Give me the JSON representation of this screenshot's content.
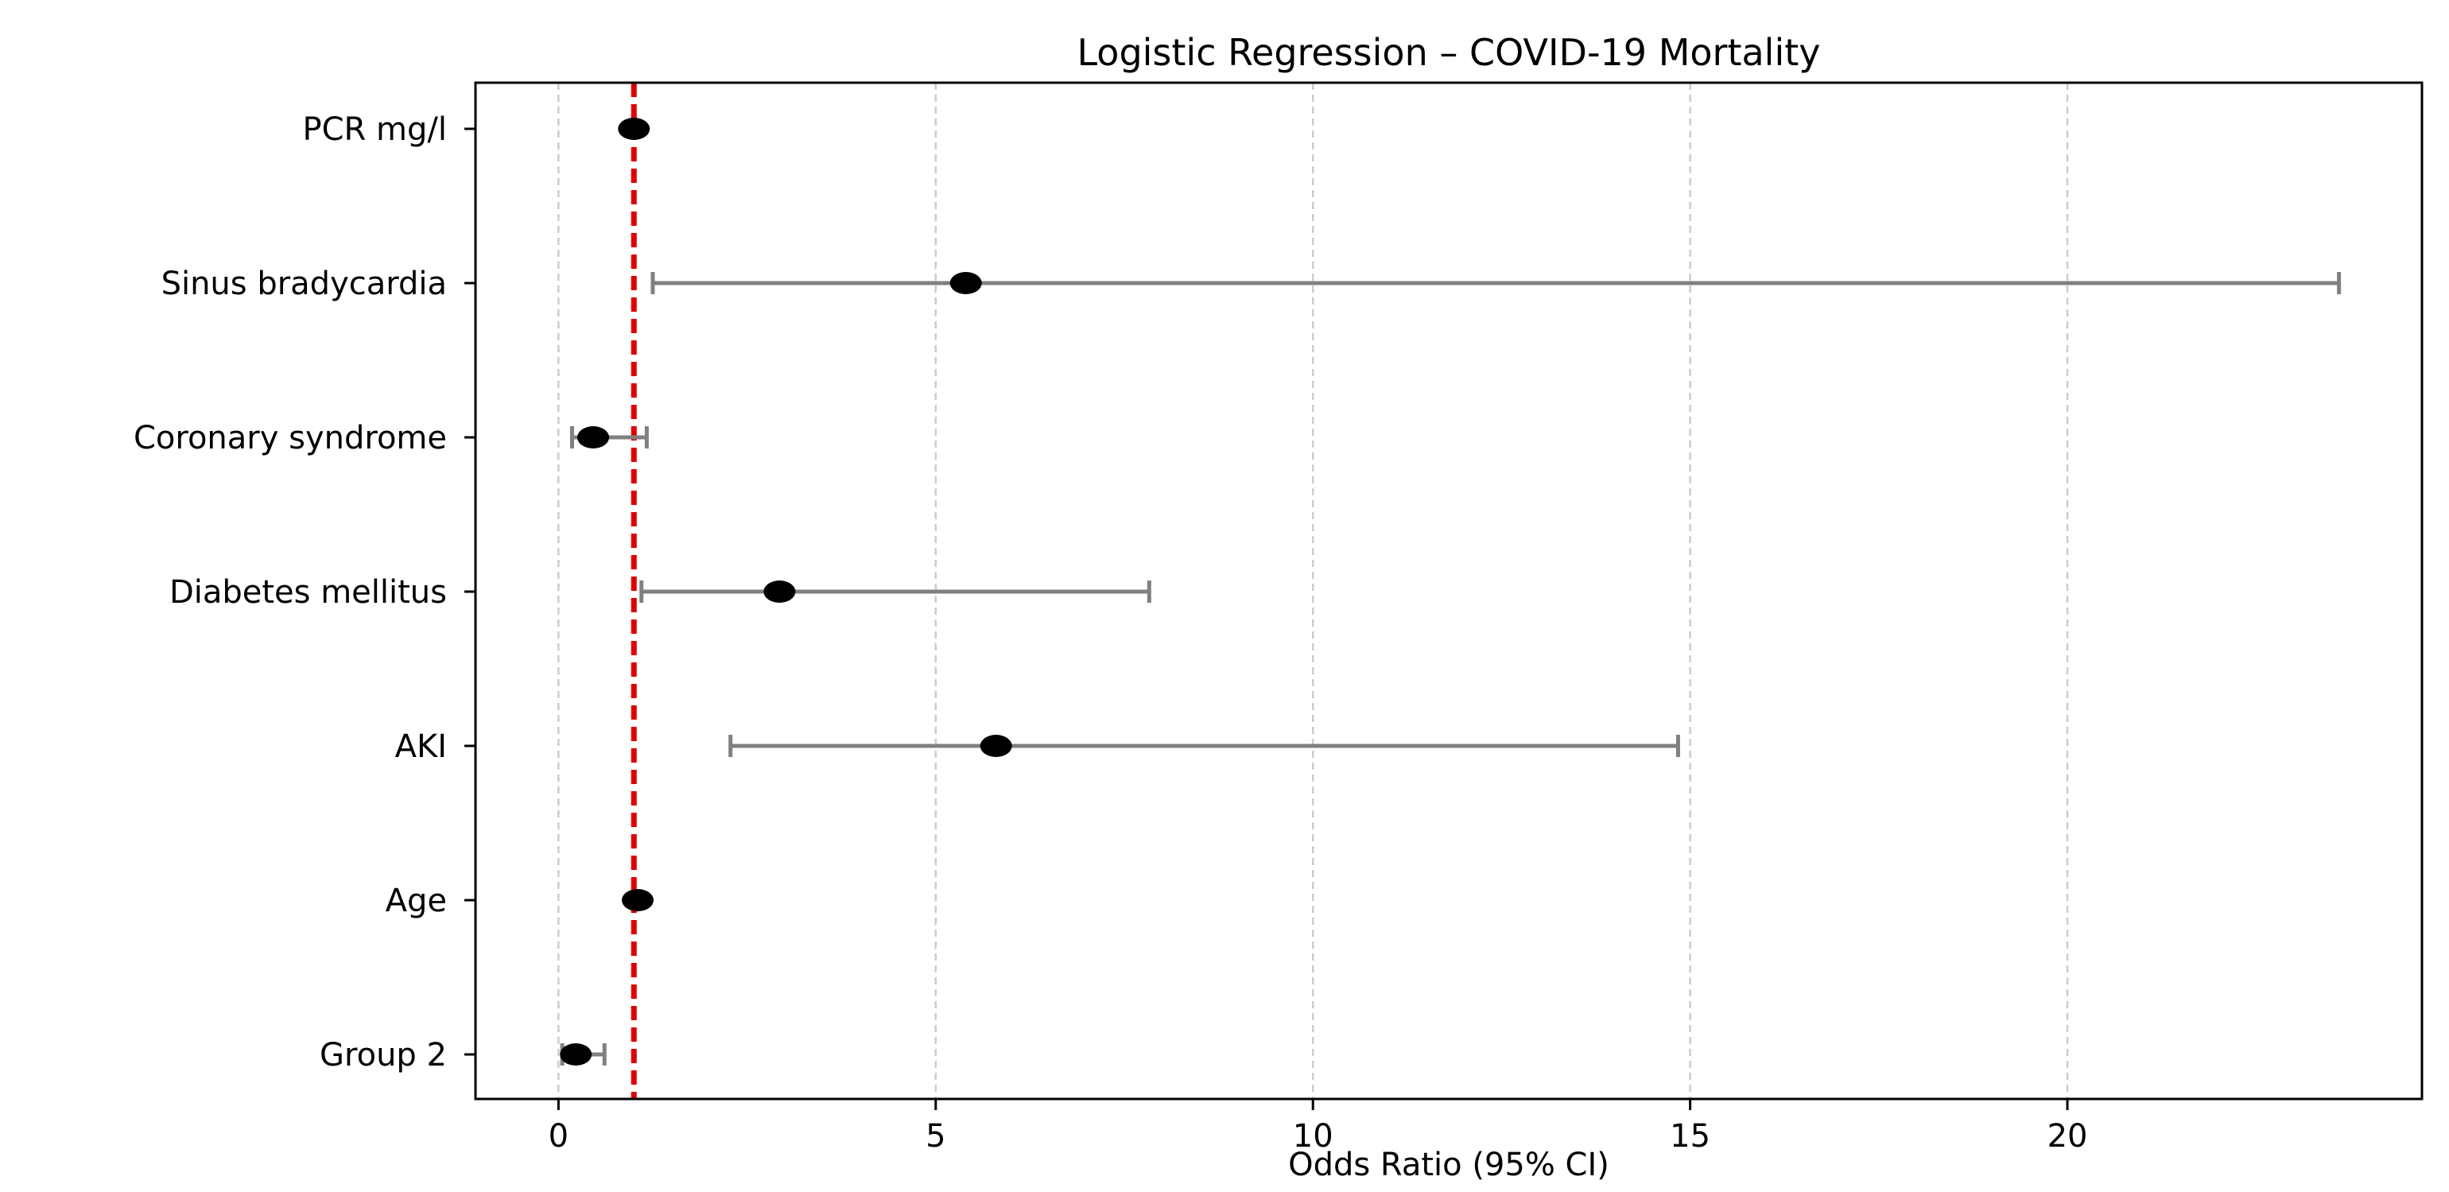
{
  "chart_data": {
    "type": "scatter",
    "title": "Logistic Regression – COVID-19 Mortality",
    "xlabel": "Odds Ratio (95% CI)",
    "ylabel": "",
    "xlim": [
      -1.1,
      24.7
    ],
    "xticks": [
      0,
      5,
      10,
      15,
      20
    ],
    "grid": {
      "x": true,
      "y": false
    },
    "reference_line": {
      "x": 1,
      "color": "#e00000",
      "style": "dashed"
    },
    "colors": {
      "point": "#000000",
      "error_bar": "#808080",
      "grid": "#cccccc"
    },
    "categories": [
      "PCR mg/l",
      "Sinus bradycardia",
      "Coronary syndrome",
      "Diabetes mellitus",
      "AKI",
      "Age",
      "Group 2"
    ],
    "points": [
      {
        "label": "PCR mg/l",
        "or": 1.0,
        "ci_low": 0.99,
        "ci_high": 1.01
      },
      {
        "label": "Sinus bradycardia",
        "or": 5.4,
        "ci_low": 1.25,
        "ci_high": 23.6
      },
      {
        "label": "Coronary syndrome",
        "or": 0.46,
        "ci_low": 0.18,
        "ci_high": 1.17
      },
      {
        "label": "Diabetes mellitus",
        "or": 2.93,
        "ci_low": 1.1,
        "ci_high": 7.83
      },
      {
        "label": "AKI",
        "or": 5.8,
        "ci_low": 2.28,
        "ci_high": 14.84
      },
      {
        "label": "Age",
        "or": 1.05,
        "ci_low": 1.02,
        "ci_high": 1.08
      },
      {
        "label": "Group 2",
        "or": 0.23,
        "ci_low": 0.05,
        "ci_high": 0.61
      }
    ]
  }
}
